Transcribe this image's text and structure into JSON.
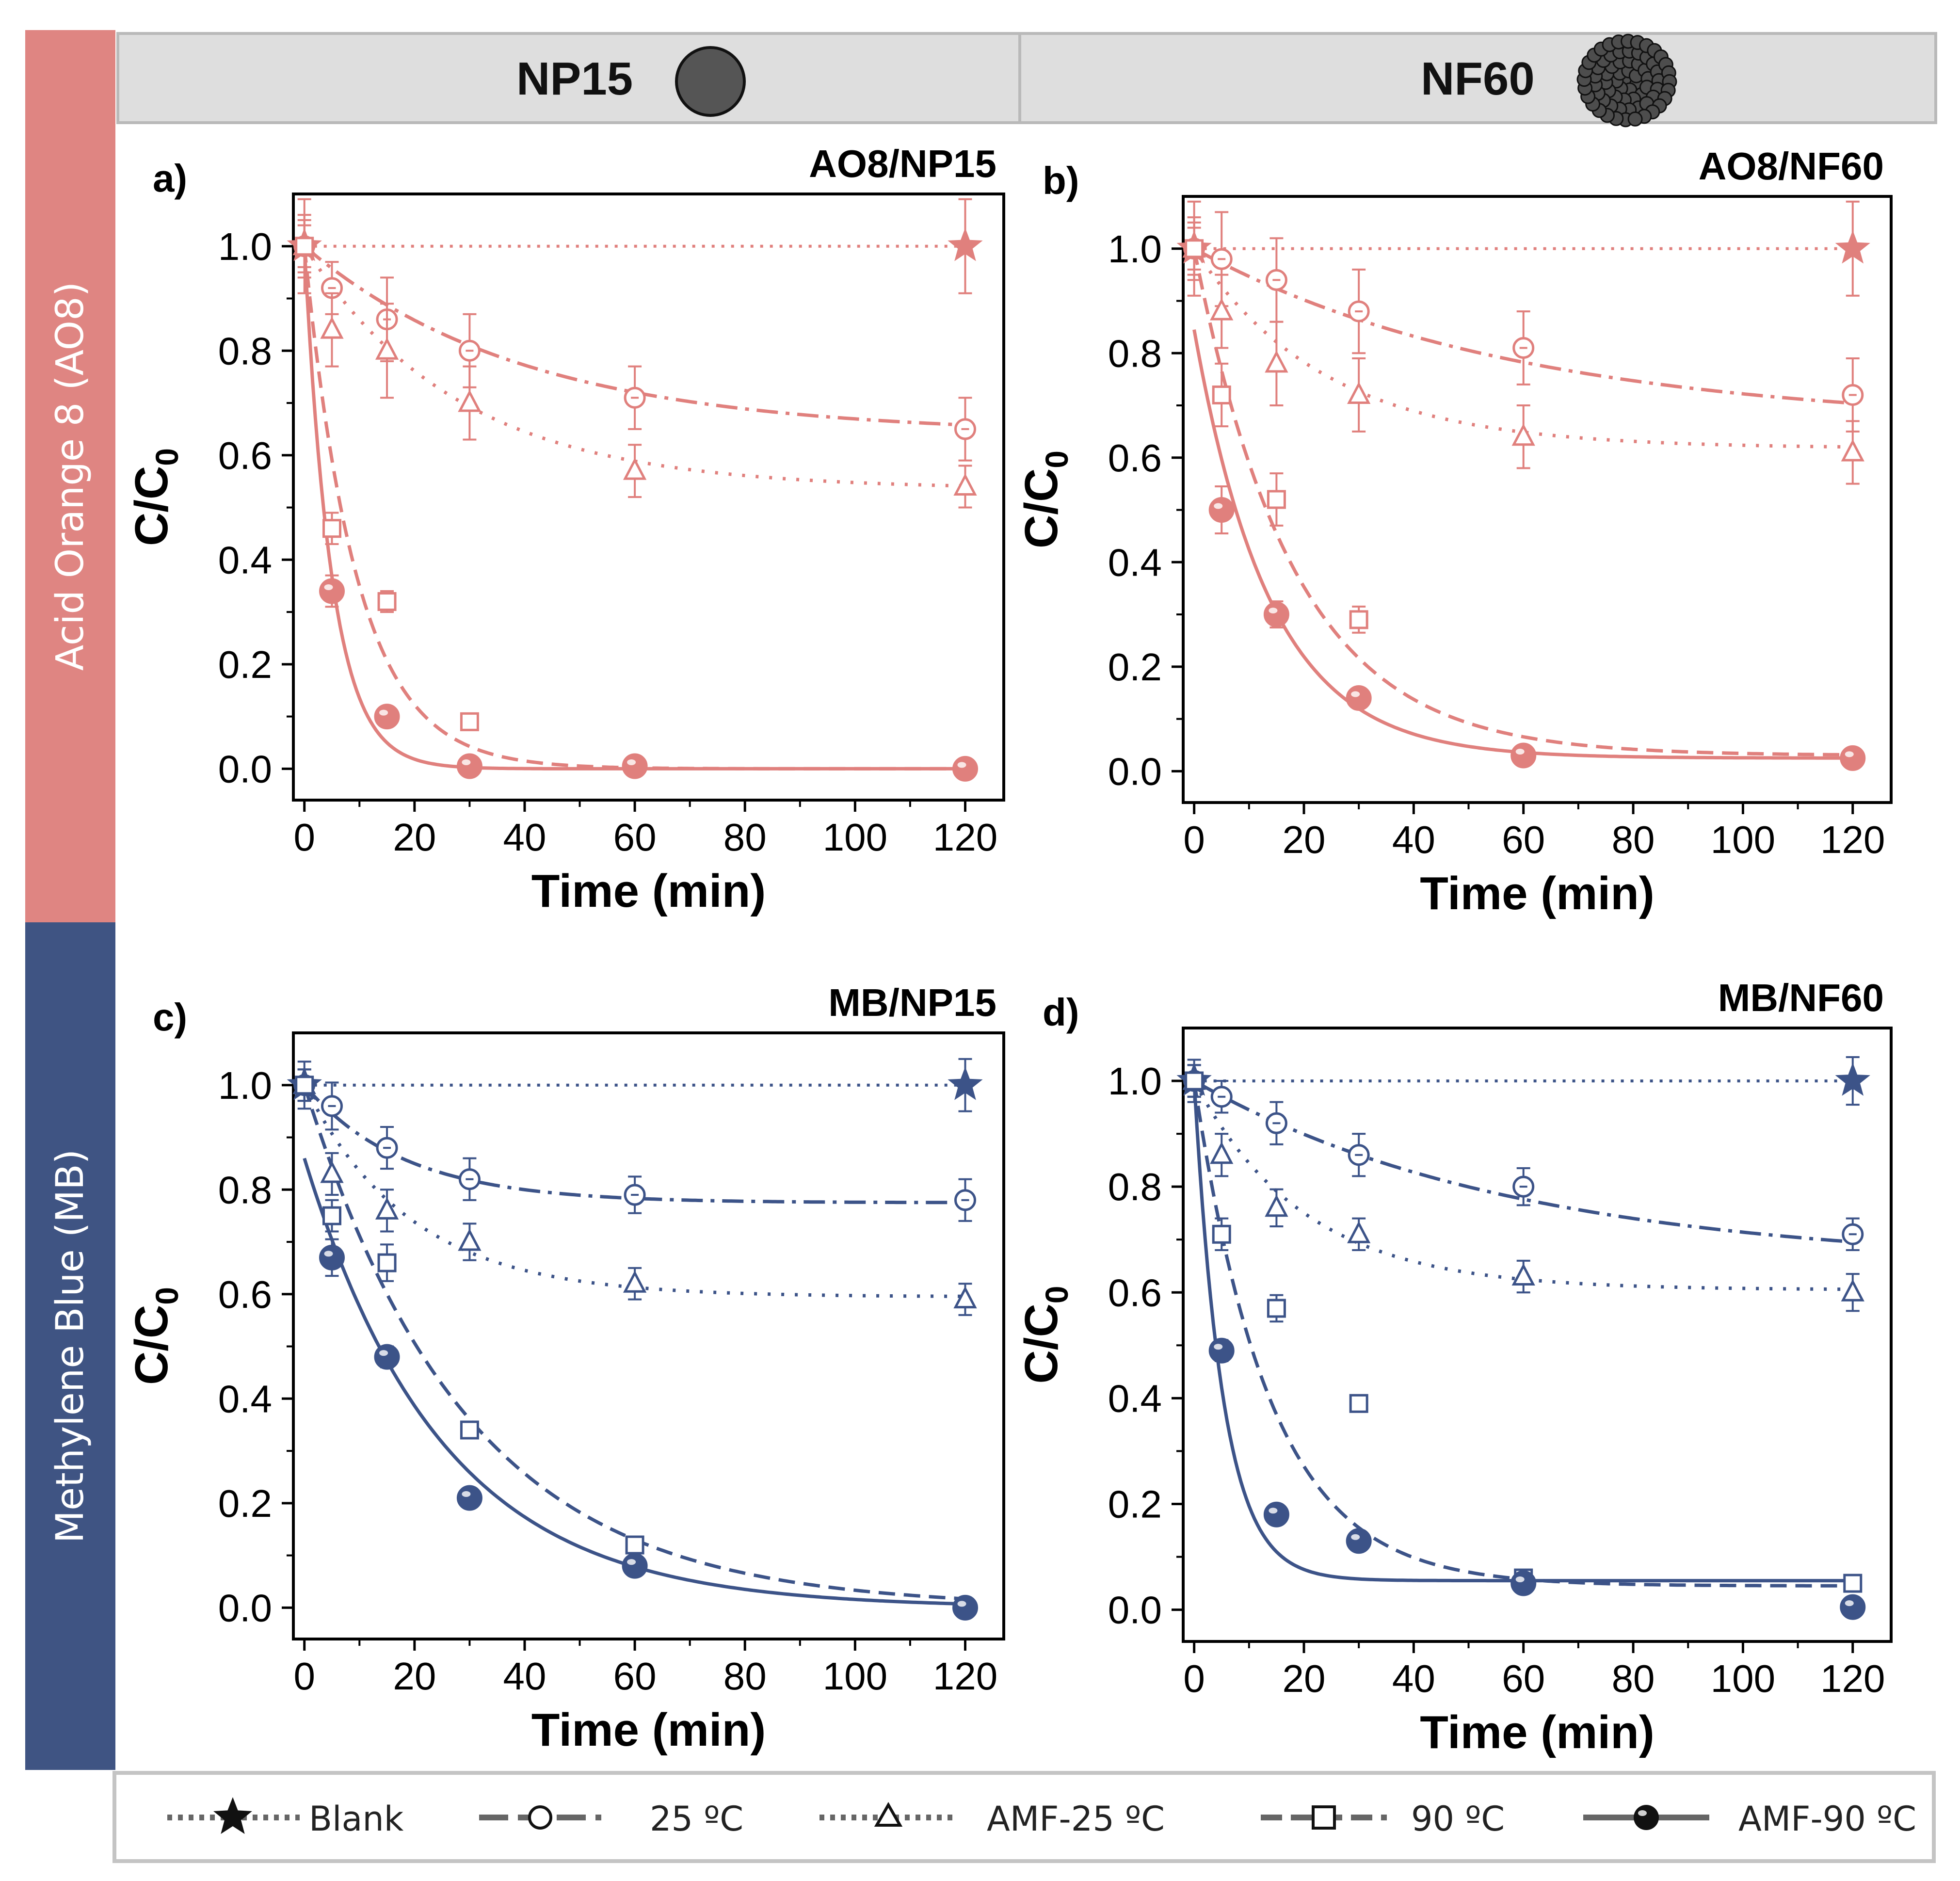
{
  "sidebar": {
    "top_label": "Acid Orange 8 (AO8)",
    "bottom_label": "Methylene Blue (MB)",
    "top_color": "#df8582",
    "bottom_color": "#3f5483"
  },
  "header": {
    "left_label": "NP15",
    "right_label": "NF60"
  },
  "legend": {
    "blank": "Blank",
    "c25": "25 ºC",
    "amf25": "AMF-25 ºC",
    "c90": "90 ºC",
    "amf90": "AMF-90 ºC"
  },
  "chart_data": [
    {
      "type": "scatter",
      "panel_label": "a)",
      "title": "AO8/NP15",
      "xlabel": "Time (min)",
      "ylabel": "C/C0",
      "xlim": [
        -2,
        127
      ],
      "ylim": [
        -0.06,
        1.1
      ],
      "xticks": [
        0,
        20,
        40,
        60,
        80,
        100,
        120
      ],
      "yticks": [
        0.0,
        0.2,
        0.4,
        0.6,
        0.8,
        1.0
      ],
      "color": "#e0807d",
      "series": [
        {
          "name": "Blank",
          "x": [
            0,
            120
          ],
          "y": [
            1.0,
            1.0
          ],
          "err": [
            0.09,
            0.09
          ],
          "fit": {
            "kind": "flat",
            "C": 1.0
          }
        },
        {
          "name": "25 ºC",
          "x": [
            0,
            5,
            15,
            30,
            60,
            120
          ],
          "y": [
            1.0,
            0.92,
            0.86,
            0.8,
            0.71,
            0.65
          ],
          "err": [
            0.06,
            0.05,
            0.08,
            0.07,
            0.06,
            0.06
          ],
          "fit": {
            "kind": "exp",
            "C": 0.64,
            "A": 0.36,
            "k": 0.025
          }
        },
        {
          "name": "AMF-25 ºC",
          "x": [
            0,
            5,
            15,
            30,
            60,
            120
          ],
          "y": [
            1.0,
            0.84,
            0.8,
            0.7,
            0.57,
            0.54
          ],
          "err": [
            0.05,
            0.07,
            0.09,
            0.07,
            0.05,
            0.04
          ],
          "fit": {
            "kind": "exp",
            "C": 0.535,
            "A": 0.465,
            "k": 0.036
          }
        },
        {
          "name": "90 ºC",
          "x": [
            0,
            5,
            15,
            30
          ],
          "y": [
            1.0,
            0.46,
            0.32,
            0.09
          ],
          "err": [
            0.04,
            0.03,
            0.02,
            0.015
          ],
          "fit": {
            "kind": "exp",
            "C": 0.0,
            "A": 1.0,
            "k": 0.105
          }
        },
        {
          "name": "AMF-90 ºC",
          "x": [
            5,
            15,
            30,
            60,
            120
          ],
          "y": [
            0.34,
            0.1,
            0.005,
            0.005,
            0.0
          ],
          "err": [
            0.03,
            0.015,
            0.0,
            0.0,
            0.0
          ],
          "fit": {
            "kind": "exp",
            "C": 0.0,
            "A": 1.0,
            "k": 0.2
          }
        }
      ]
    },
    {
      "type": "scatter",
      "panel_label": "b)",
      "title": "AO8/NF60",
      "xlabel": "Time (min)",
      "ylabel": "C/C0",
      "xlim": [
        -2,
        127
      ],
      "ylim": [
        -0.06,
        1.1
      ],
      "xticks": [
        0,
        20,
        40,
        60,
        80,
        100,
        120
      ],
      "yticks": [
        0.0,
        0.2,
        0.4,
        0.6,
        0.8,
        1.0
      ],
      "color": "#e0807d",
      "series": [
        {
          "name": "Blank",
          "x": [
            0,
            120
          ],
          "y": [
            1.0,
            1.0
          ],
          "err": [
            0.09,
            0.09
          ],
          "fit": {
            "kind": "flat",
            "C": 1.0
          }
        },
        {
          "name": "25 ºC",
          "x": [
            0,
            5,
            15,
            30,
            60,
            120
          ],
          "y": [
            1.0,
            0.98,
            0.94,
            0.88,
            0.81,
            0.72
          ],
          "err": [
            0.05,
            0.09,
            0.08,
            0.08,
            0.07,
            0.07
          ],
          "fit": {
            "kind": "exp",
            "C": 0.66,
            "A": 0.34,
            "k": 0.017
          }
        },
        {
          "name": "AMF-25 ºC",
          "x": [
            0,
            5,
            15,
            30,
            60,
            120
          ],
          "y": [
            1.0,
            0.88,
            0.78,
            0.72,
            0.64,
            0.61
          ],
          "err": [
            0.06,
            0.07,
            0.08,
            0.07,
            0.06,
            0.06
          ],
          "fit": {
            "kind": "exp",
            "C": 0.618,
            "A": 0.382,
            "k": 0.042
          }
        },
        {
          "name": "90 ºC",
          "x": [
            0,
            5,
            15,
            30
          ],
          "y": [
            1.0,
            0.72,
            0.52,
            0.29
          ],
          "err": [
            0.04,
            0.06,
            0.05,
            0.025
          ],
          "fit": {
            "kind": "exp",
            "C": 0.03,
            "A": 0.97,
            "k": 0.055
          }
        },
        {
          "name": "AMF-90 ºC",
          "x": [
            5,
            15,
            30,
            60,
            120
          ],
          "y": [
            0.5,
            0.3,
            0.14,
            0.03,
            0.025
          ],
          "err": [
            0.045,
            0.025,
            0.015,
            0.0,
            0.0
          ],
          "fit": {
            "kind": "exp",
            "C": 0.025,
            "A": 0.82,
            "k": 0.072
          }
        }
      ]
    },
    {
      "type": "scatter",
      "panel_label": "c)",
      "title": "MB/NP15",
      "xlabel": "Time (min)",
      "ylabel": "C/C0",
      "xlim": [
        -2,
        127
      ],
      "ylim": [
        -0.06,
        1.1
      ],
      "xticks": [
        0,
        20,
        40,
        60,
        80,
        100,
        120
      ],
      "yticks": [
        0.0,
        0.2,
        0.4,
        0.6,
        0.8,
        1.0
      ],
      "color": "#3c5388",
      "series": [
        {
          "name": "Blank",
          "x": [
            0,
            120
          ],
          "y": [
            1.0,
            1.0
          ],
          "err": [
            0.045,
            0.05
          ],
          "fit": {
            "kind": "flat",
            "C": 1.0
          }
        },
        {
          "name": "25 ºC",
          "x": [
            0,
            5,
            15,
            30,
            60,
            120
          ],
          "y": [
            1.0,
            0.96,
            0.88,
            0.82,
            0.79,
            0.78
          ],
          "err": [
            0.03,
            0.045,
            0.04,
            0.04,
            0.035,
            0.04
          ],
          "fit": {
            "kind": "exp",
            "C": 0.775,
            "A": 0.225,
            "k": 0.055
          }
        },
        {
          "name": "AMF-25 ºC",
          "x": [
            0,
            5,
            15,
            30,
            60,
            120
          ],
          "y": [
            1.0,
            0.83,
            0.76,
            0.7,
            0.62,
            0.59
          ],
          "err": [
            0.03,
            0.04,
            0.04,
            0.035,
            0.03,
            0.03
          ],
          "fit": {
            "kind": "exp",
            "C": 0.595,
            "A": 0.405,
            "k": 0.052
          }
        },
        {
          "name": "90 ºC",
          "x": [
            0,
            5,
            15,
            30,
            60
          ],
          "y": [
            1.0,
            0.75,
            0.66,
            0.34,
            0.12
          ],
          "err": [
            0.03,
            0.03,
            0.035,
            0.01,
            0.01
          ],
          "fit": {
            "kind": "exp",
            "C": 0.0,
            "A": 1.0,
            "k": 0.034
          }
        },
        {
          "name": "AMF-90 ºC",
          "x": [
            5,
            15,
            30,
            60,
            120
          ],
          "y": [
            0.67,
            0.48,
            0.21,
            0.08,
            0.0
          ],
          "err": [
            0.035,
            0.02,
            0.0,
            0.0,
            0.0
          ],
          "fit": {
            "kind": "exp",
            "C": 0.0,
            "A": 0.86,
            "k": 0.04
          }
        }
      ]
    },
    {
      "type": "scatter",
      "panel_label": "d)",
      "title": "MB/NF60",
      "xlabel": "Time (min)",
      "ylabel": "C/C0",
      "xlim": [
        -2,
        127
      ],
      "ylim": [
        -0.06,
        1.1
      ],
      "xticks": [
        0,
        20,
        40,
        60,
        80,
        100,
        120
      ],
      "yticks": [
        0.0,
        0.2,
        0.4,
        0.6,
        0.8,
        1.0
      ],
      "color": "#3c5388",
      "series": [
        {
          "name": "Blank",
          "x": [
            0,
            120
          ],
          "y": [
            1.0,
            1.0
          ],
          "err": [
            0.04,
            0.045
          ],
          "fit": {
            "kind": "flat",
            "C": 1.0
          }
        },
        {
          "name": "25 ºC",
          "x": [
            0,
            5,
            15,
            30,
            60,
            120
          ],
          "y": [
            1.0,
            0.97,
            0.92,
            0.86,
            0.8,
            0.71
          ],
          "err": [
            0.03,
            0.03,
            0.04,
            0.04,
            0.035,
            0.03
          ],
          "fit": {
            "kind": "exp",
            "C": 0.65,
            "A": 0.35,
            "k": 0.017
          }
        },
        {
          "name": "AMF-25 ºC",
          "x": [
            0,
            5,
            15,
            30,
            60,
            120
          ],
          "y": [
            1.0,
            0.86,
            0.76,
            0.71,
            0.63,
            0.6
          ],
          "err": [
            0.03,
            0.04,
            0.035,
            0.03,
            0.03,
            0.035
          ],
          "fit": {
            "kind": "exp",
            "C": 0.605,
            "A": 0.395,
            "k": 0.05
          }
        },
        {
          "name": "90 ºC",
          "x": [
            0,
            5,
            15,
            30,
            60,
            120
          ],
          "y": [
            1.0,
            0.71,
            0.57,
            0.39,
            0.06,
            0.05
          ],
          "err": [
            0.03,
            0.03,
            0.025,
            0.015,
            0.0,
            0.0
          ],
          "fit": {
            "kind": "exp",
            "C": 0.045,
            "A": 0.955,
            "k": 0.072
          }
        },
        {
          "name": "AMF-90 ºC",
          "x": [
            5,
            15,
            30,
            60,
            120
          ],
          "y": [
            0.49,
            0.18,
            0.13,
            0.05,
            0.005
          ],
          "err": [
            0.02,
            0.0,
            0.0,
            0.0,
            0.0
          ],
          "fit": {
            "kind": "exp",
            "C": 0.055,
            "A": 0.945,
            "k": 0.19
          }
        }
      ]
    }
  ]
}
